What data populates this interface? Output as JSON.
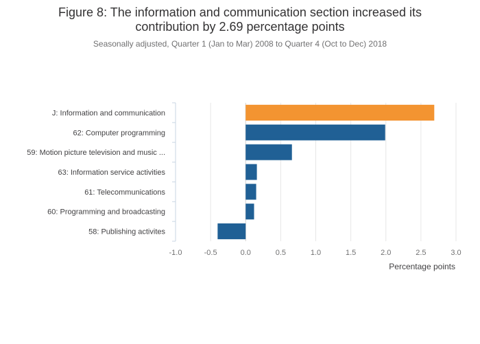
{
  "title_line1": "Figure 8: The information and communication section increased its",
  "title_line2": "contribution by 2.69 percentage points",
  "subtitle": "Seasonally adjusted, Quarter 1 (Jan to Mar) 2008 to Quarter 4 (Oct to Dec) 2018",
  "chart_data": {
    "type": "bar",
    "orientation": "horizontal",
    "categories": [
      "J: Information and communication",
      "62: Computer programming",
      "59: Motion picture television and music ...",
      "63: Information service activities",
      "61: Telecommunications",
      "60: Programming and broadcasting",
      "58: Publishing activites"
    ],
    "values": [
      2.69,
      1.99,
      0.66,
      0.16,
      0.15,
      0.12,
      -0.4
    ],
    "colors": [
      "#f39431",
      "#206095",
      "#206095",
      "#206095",
      "#206095",
      "#206095",
      "#206095"
    ],
    "xlabel": "Percentage points",
    "ylabel": "",
    "xlim": [
      -1.0,
      3.0
    ],
    "xticks": [
      "-1.0",
      "-0.5",
      "0.0",
      "0.5",
      "1.0",
      "1.5",
      "2.0",
      "2.5",
      "3.0"
    ],
    "grid": true
  }
}
